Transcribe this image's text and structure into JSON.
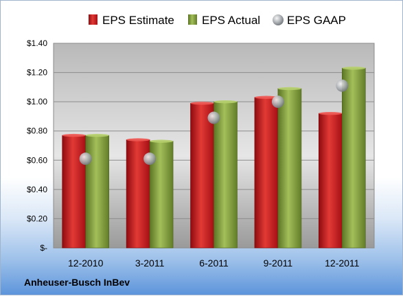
{
  "chart_data": {
    "type": "bar",
    "categories": [
      "12-2010",
      "3-2011",
      "6-2011",
      "9-2011",
      "12-2011"
    ],
    "series": [
      {
        "name": "EPS Estimate",
        "values": [
          0.77,
          0.74,
          0.99,
          1.03,
          0.92
        ],
        "color": "#c8161d",
        "kind": "bar"
      },
      {
        "name": "EPS Actual",
        "values": [
          0.77,
          0.73,
          1.0,
          1.09,
          1.23
        ],
        "color": "#7f9b3a",
        "kind": "bar"
      },
      {
        "name": "EPS GAAP",
        "values": [
          0.61,
          0.61,
          0.89,
          1.0,
          1.11
        ],
        "color": "#b0b4b8",
        "kind": "marker"
      }
    ],
    "ylim": [
      0,
      1.4
    ],
    "yticks": [
      0,
      0.2,
      0.4,
      0.6,
      0.8,
      1.0,
      1.2,
      1.4
    ],
    "ytick_labels": [
      "$-",
      "$0.20",
      "$0.40",
      "$0.60",
      "$0.80",
      "$1.00",
      "$1.20",
      "$1.40"
    ],
    "grid": true,
    "legend_position": "top"
  },
  "footer": {
    "company": "Anheuser-Busch InBev"
  }
}
